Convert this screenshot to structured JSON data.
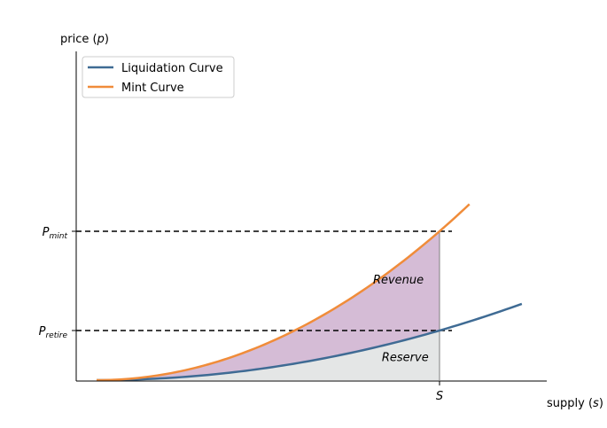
{
  "chart_data": {
    "type": "line",
    "xlabel": "supply",
    "xlabel_var": "s",
    "ylabel": "price",
    "ylabel_var": "p",
    "legend_placement": "top-left",
    "grid": false,
    "series": [
      {
        "name": "Liquidation Curve",
        "color": "#3f6b94",
        "exponent": 2,
        "coefficient": 1
      },
      {
        "name": "Mint Curve",
        "color": "#f08c3a",
        "exponent": 2,
        "coefficient": 3
      }
    ],
    "supply_marker": {
      "label": "S",
      "value": 1
    },
    "price_markers": [
      {
        "base": "P",
        "sub": "mint",
        "value": 3
      },
      {
        "base": "P",
        "sub": "retire",
        "value": 1
      }
    ],
    "regions": [
      {
        "label": "Revenue",
        "color": "#d5bcd6"
      },
      {
        "label": "Reserve",
        "color": "#e4e6e6"
      }
    ],
    "x_range": [
      0,
      1.24
    ],
    "y_range": [
      0,
      3.6
    ]
  }
}
